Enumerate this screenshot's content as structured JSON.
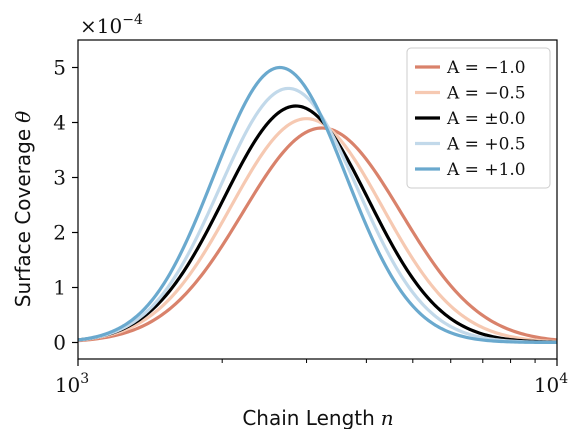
{
  "chart_data": {
    "type": "line",
    "xlabel": "Chain Length",
    "xlabel_var": "n",
    "ylabel": "Surface Coverage",
    "ylabel_var": "θ",
    "x_scale": "log",
    "xlim": [
      1000,
      10000
    ],
    "ylim": [
      -0.3,
      5.5
    ],
    "y_multiplier_base": "×10",
    "y_multiplier_exp": "−4",
    "x_ticks": [
      {
        "value": 1000,
        "base": "10",
        "exp": "3"
      },
      {
        "value": 10000,
        "base": "10",
        "exp": "4"
      }
    ],
    "y_ticks": [
      {
        "value": 0,
        "label": "0"
      },
      {
        "value": 1,
        "label": "1"
      },
      {
        "value": 2,
        "label": "2"
      },
      {
        "value": 3,
        "label": "3"
      },
      {
        "value": 4,
        "label": "4"
      },
      {
        "value": 5,
        "label": "5"
      }
    ],
    "legend_position": "top-right",
    "grid": false,
    "series": [
      {
        "name": "A = −1.0",
        "color": "#d9826b",
        "peak_x": 3230,
        "peak_y": 3.9,
        "width": 0.165
      },
      {
        "name": "A = −0.5",
        "color": "#f6c9b2",
        "peak_x": 3000,
        "peak_y": 4.07,
        "width": 0.158
      },
      {
        "name": "A = ±0.0",
        "color": "#000000",
        "peak_x": 2850,
        "peak_y": 4.3,
        "width": 0.151
      },
      {
        "name": "A = +0.5",
        "color": "#c2d9ea",
        "peak_x": 2750,
        "peak_y": 4.62,
        "width": 0.144
      },
      {
        "name": "A = +1.0",
        "color": "#6aa9ce",
        "peak_x": 2640,
        "peak_y": 5.0,
        "width": 0.138
      }
    ]
  }
}
